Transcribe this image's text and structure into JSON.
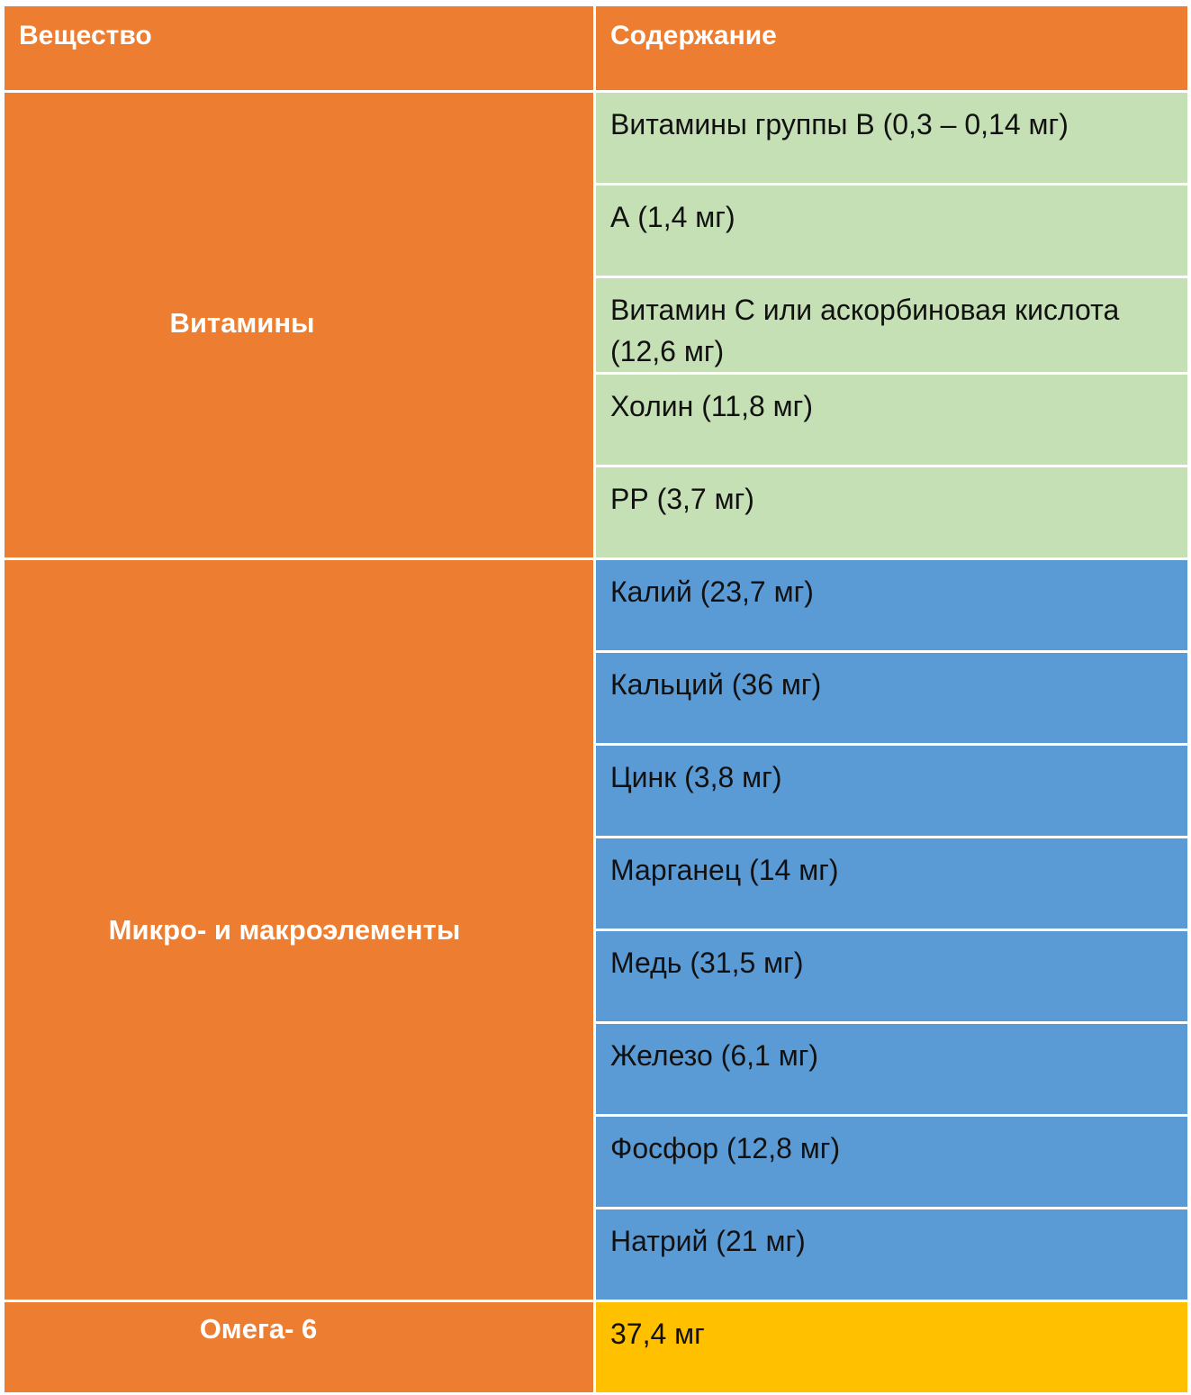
{
  "table": {
    "headers": {
      "substance": "Вещество",
      "content": "Содержание"
    },
    "colors": {
      "header_bg": "#ed7d31",
      "category_bg": "#ed7d31",
      "vitamins_bg": "#c5e0b4",
      "minerals_bg": "#5b9bd5",
      "omega_bg": "#ffc000"
    },
    "groups": [
      {
        "category": "Витамины",
        "items": [
          "Витамины группы В (0,3 – 0,14 мг)",
          "А (1,4 мг)",
          "Витамин С или аскорбиновая кислота (12,6 мг)",
          "Холин (11,8 мг)",
          "РР (3,7 мг)"
        ]
      },
      {
        "category": "Микро- и макроэлементы",
        "items": [
          "Калий (23,7 мг)",
          "Кальций (36 мг)",
          "Цинк (3,8 мг)",
          "Марганец (14 мг)",
          "Медь (31,5 мг)",
          "Железо (6,1 мг)",
          "Фосфор (12,8 мг)",
          "Натрий (21 мг)"
        ]
      },
      {
        "category": "Омега- 6",
        "items": [
          "37,4 мг"
        ]
      }
    ]
  }
}
